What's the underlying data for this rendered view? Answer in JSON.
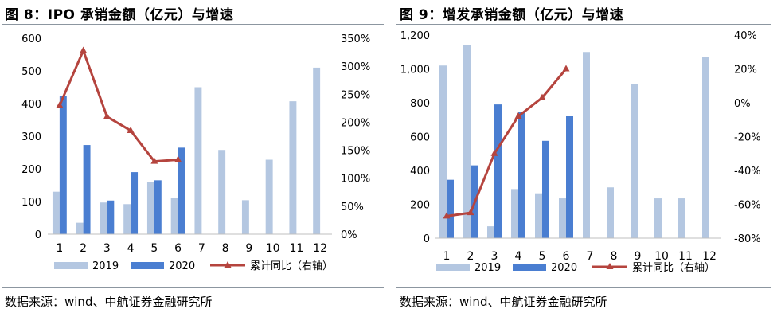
{
  "colors": {
    "c2019": "#b4c7e1",
    "c2020": "#4a7ed1",
    "line": "#b5443e"
  },
  "legend": {
    "y2019": "2019",
    "y2020": "2020",
    "cumulative": "累计同比（右轴）"
  },
  "source": "数据来源：wind、中航证券金融研究所",
  "charts": [
    {
      "title": "图 8：IPO 承销金额（亿元）与增速",
      "left_ticks": [
        "0",
        "100",
        "200",
        "300",
        "400",
        "500",
        "600"
      ],
      "right_ticks": [
        "0%",
        "50%",
        "100%",
        "150%",
        "200%",
        "250%",
        "300%",
        "350%"
      ],
      "categories": [
        "1",
        "2",
        "3",
        "4",
        "5",
        "6",
        "7",
        "8",
        "9",
        "10",
        "11",
        "12"
      ]
    },
    {
      "title": "图 9：增发承销金额（亿元）与增速",
      "left_ticks": [
        "0",
        "200",
        "400",
        "600",
        "800",
        "1,000",
        "1,200"
      ],
      "right_ticks": [
        "-80%",
        "-60%",
        "-40%",
        "-20%",
        "0%",
        "20%",
        "40%"
      ],
      "categories": [
        "1",
        "2",
        "3",
        "4",
        "5",
        "6",
        "7",
        "8",
        "9",
        "10",
        "11",
        "12"
      ]
    }
  ],
  "chart_data": [
    {
      "type": "bar",
      "title": "图 8：IPO 承销金额（亿元）与增速",
      "categories": [
        "1",
        "2",
        "3",
        "4",
        "5",
        "6",
        "7",
        "8",
        "9",
        "10",
        "11",
        "12"
      ],
      "series": [
        {
          "name": "2019",
          "type": "bar",
          "axis": "left",
          "values": [
            130,
            35,
            97,
            92,
            160,
            110,
            450,
            258,
            104,
            228,
            407,
            510
          ]
        },
        {
          "name": "2020",
          "type": "bar",
          "axis": "left",
          "values": [
            422,
            273,
            103,
            190,
            165,
            265,
            null,
            null,
            null,
            null,
            null,
            null
          ]
        },
        {
          "name": "累计同比（右轴）",
          "type": "line",
          "axis": "right",
          "values": [
            230,
            328,
            210,
            185,
            130,
            133,
            null,
            null,
            null,
            null,
            null,
            null
          ]
        }
      ],
      "ylim_left": [
        0,
        600
      ],
      "ylim_right": [
        0,
        350
      ],
      "right_unit": "%",
      "legend": "bottom"
    },
    {
      "type": "bar",
      "title": "图 9：增发承销金额（亿元）与增速",
      "categories": [
        "1",
        "2",
        "3",
        "4",
        "5",
        "6",
        "7",
        "8",
        "9",
        "10",
        "11",
        "12"
      ],
      "series": [
        {
          "name": "2019",
          "type": "bar",
          "axis": "left",
          "values": [
            1020,
            1140,
            70,
            290,
            265,
            235,
            1100,
            300,
            910,
            235,
            235,
            1070
          ]
        },
        {
          "name": "2020",
          "type": "bar",
          "axis": "left",
          "values": [
            345,
            430,
            790,
            745,
            575,
            720,
            null,
            null,
            null,
            null,
            null,
            null
          ]
        },
        {
          "name": "累计同比（右轴）",
          "type": "line",
          "axis": "right",
          "values": [
            -67,
            -65,
            -30,
            -8,
            3,
            20,
            null,
            null,
            null,
            null,
            null,
            null
          ]
        }
      ],
      "ylim_left": [
        0,
        1200
      ],
      "ylim_right": [
        -80,
        40
      ],
      "right_unit": "%",
      "legend": "bottom"
    }
  ]
}
